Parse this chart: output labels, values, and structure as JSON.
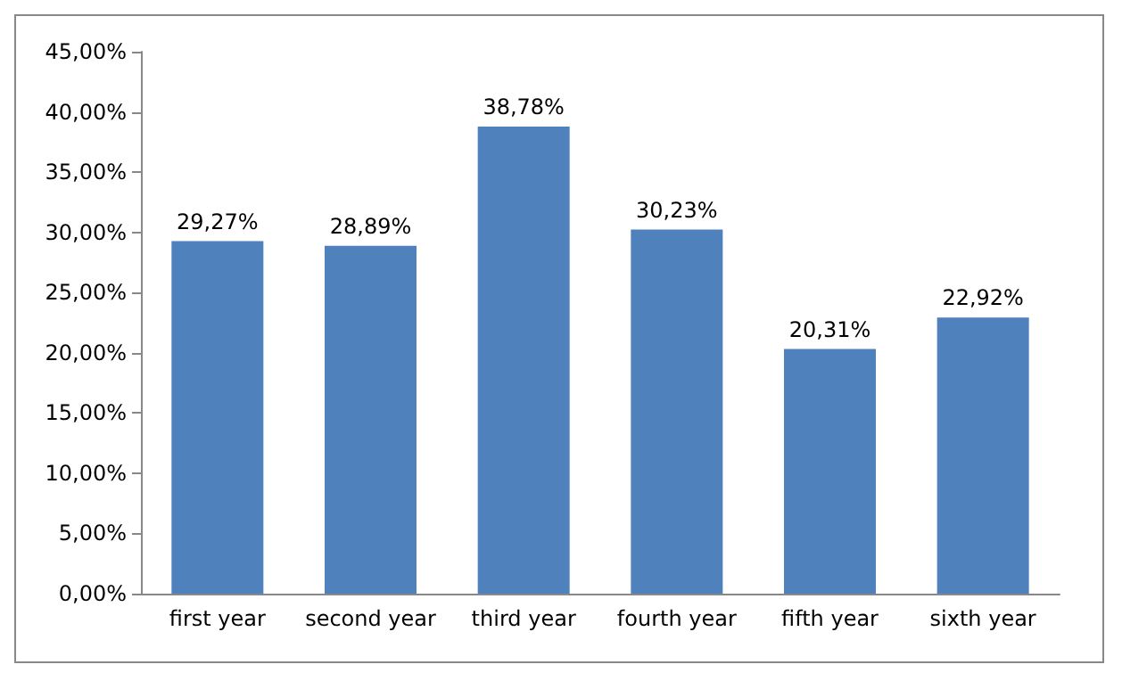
{
  "chart_data": {
    "type": "bar",
    "categories": [
      "first year",
      "second year",
      "third year",
      "fourth year",
      "fifth year",
      "sixth year"
    ],
    "values": [
      29.27,
      28.89,
      38.78,
      30.23,
      20.31,
      22.92
    ],
    "value_labels": [
      "29,27%",
      "28,89%",
      "38,78%",
      "30,23%",
      "20,31%",
      "22,92%"
    ],
    "color": "#4f81bd",
    "ylim": [
      0,
      45
    ],
    "yticks": [
      {
        "value": 0,
        "label": "0,00%"
      },
      {
        "value": 5,
        "label": "5,00%"
      },
      {
        "value": 10,
        "label": "10,00%"
      },
      {
        "value": 15,
        "label": "15,00%"
      },
      {
        "value": 20,
        "label": "20,00%"
      },
      {
        "value": 25,
        "label": "25,00%"
      },
      {
        "value": 30,
        "label": "30,00%"
      },
      {
        "value": 35,
        "label": "35,00%"
      },
      {
        "value": 40,
        "label": "40,00%"
      },
      {
        "value": 45,
        "label": "45,00%"
      }
    ],
    "grid": false
  }
}
